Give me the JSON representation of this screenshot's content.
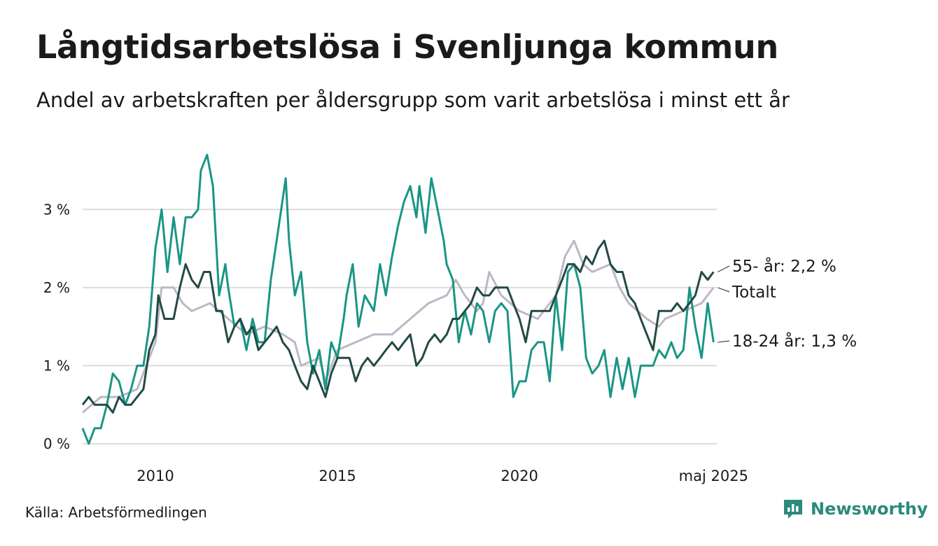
{
  "header": {
    "title": "Långtidsarbetslösa i Svenljunga kommun",
    "subtitle": "Andel av arbetskraften per åldersgrupp som varit arbetslösa i minst ett år"
  },
  "footer": {
    "source": "Källa: Arbetsförmedlingen",
    "brand": "Newsworthy",
    "brand_color": "#2a8a7c"
  },
  "chart_data": {
    "type": "line",
    "title": "Långtidsarbetslösa i Svenljunga kommun",
    "subtitle": "Andel av arbetskraften per åldersgrupp som varit arbetslösa i minst ett år",
    "x_unit": "year",
    "xlim": [
      2008.0,
      2025.42
    ],
    "ylim": [
      0,
      3.8
    ],
    "y_ticks": [
      {
        "value": 0,
        "label": "0 %"
      },
      {
        "value": 1,
        "label": "1 %"
      },
      {
        "value": 2,
        "label": "2 %"
      },
      {
        "value": 3,
        "label": "3 %"
      }
    ],
    "x_ticks": [
      {
        "value": 2010,
        "label": "2010"
      },
      {
        "value": 2015,
        "label": "2015"
      },
      {
        "value": 2020,
        "label": "2020"
      },
      {
        "value": 2025.33,
        "label": "maj 2025"
      }
    ],
    "grid": "horizontal",
    "series": [
      {
        "name": "Totalt",
        "color": "#bcb8c6",
        "end_label": "Totalt",
        "points": [
          [
            2008.0,
            0.4
          ],
          [
            2008.5,
            0.6
          ],
          [
            2009.0,
            0.6
          ],
          [
            2009.5,
            0.7
          ],
          [
            2010.0,
            1.3
          ],
          [
            2010.17,
            2.0
          ],
          [
            2010.5,
            2.0
          ],
          [
            2010.75,
            1.8
          ],
          [
            2011.0,
            1.7
          ],
          [
            2011.5,
            1.8
          ],
          [
            2011.75,
            1.7
          ],
          [
            2012.0,
            1.6
          ],
          [
            2012.5,
            1.4
          ],
          [
            2013.0,
            1.5
          ],
          [
            2013.5,
            1.4
          ],
          [
            2013.83,
            1.3
          ],
          [
            2014.0,
            1.0
          ],
          [
            2014.5,
            1.1
          ],
          [
            2014.67,
            0.8
          ],
          [
            2015.0,
            1.2
          ],
          [
            2015.5,
            1.3
          ],
          [
            2016.0,
            1.4
          ],
          [
            2016.5,
            1.4
          ],
          [
            2017.0,
            1.6
          ],
          [
            2017.5,
            1.8
          ],
          [
            2018.0,
            1.9
          ],
          [
            2018.25,
            2.1
          ],
          [
            2018.5,
            1.9
          ],
          [
            2018.83,
            1.7
          ],
          [
            2019.0,
            1.8
          ],
          [
            2019.17,
            2.2
          ],
          [
            2019.5,
            1.9
          ],
          [
            2020.0,
            1.7
          ],
          [
            2020.5,
            1.6
          ],
          [
            2021.0,
            1.9
          ],
          [
            2021.25,
            2.4
          ],
          [
            2021.5,
            2.6
          ],
          [
            2021.75,
            2.3
          ],
          [
            2022.0,
            2.2
          ],
          [
            2022.5,
            2.3
          ],
          [
            2022.75,
            2.0
          ],
          [
            2023.0,
            1.8
          ],
          [
            2023.5,
            1.6
          ],
          [
            2023.83,
            1.5
          ],
          [
            2024.0,
            1.6
          ],
          [
            2024.5,
            1.7
          ],
          [
            2025.0,
            1.8
          ],
          [
            2025.33,
            2.0
          ]
        ]
      },
      {
        "name": "18-24 år",
        "color": "#1a9585",
        "end_label": "18-24 år: 1,3 %",
        "points": [
          [
            2008.0,
            0.2
          ],
          [
            2008.17,
            0.0
          ],
          [
            2008.33,
            0.2
          ],
          [
            2008.5,
            0.2
          ],
          [
            2008.67,
            0.5
          ],
          [
            2008.83,
            0.9
          ],
          [
            2009.0,
            0.8
          ],
          [
            2009.17,
            0.5
          ],
          [
            2009.33,
            0.7
          ],
          [
            2009.5,
            1.0
          ],
          [
            2009.67,
            1.0
          ],
          [
            2009.83,
            1.5
          ],
          [
            2010.0,
            2.5
          ],
          [
            2010.17,
            3.0
          ],
          [
            2010.33,
            2.2
          ],
          [
            2010.5,
            2.9
          ],
          [
            2010.67,
            2.3
          ],
          [
            2010.83,
            2.9
          ],
          [
            2011.0,
            2.9
          ],
          [
            2011.17,
            3.0
          ],
          [
            2011.25,
            3.5
          ],
          [
            2011.42,
            3.7
          ],
          [
            2011.58,
            3.3
          ],
          [
            2011.75,
            1.9
          ],
          [
            2011.92,
            2.3
          ],
          [
            2012.0,
            2.0
          ],
          [
            2012.17,
            1.5
          ],
          [
            2012.33,
            1.6
          ],
          [
            2012.5,
            1.2
          ],
          [
            2012.67,
            1.6
          ],
          [
            2012.83,
            1.3
          ],
          [
            2013.0,
            1.3
          ],
          [
            2013.17,
            2.1
          ],
          [
            2013.33,
            2.6
          ],
          [
            2013.58,
            3.4
          ],
          [
            2013.67,
            2.6
          ],
          [
            2013.83,
            1.9
          ],
          [
            2014.0,
            2.2
          ],
          [
            2014.17,
            1.3
          ],
          [
            2014.33,
            0.9
          ],
          [
            2014.5,
            1.2
          ],
          [
            2014.67,
            0.7
          ],
          [
            2014.83,
            1.3
          ],
          [
            2015.0,
            1.1
          ],
          [
            2015.17,
            1.6
          ],
          [
            2015.25,
            1.9
          ],
          [
            2015.42,
            2.3
          ],
          [
            2015.58,
            1.5
          ],
          [
            2015.75,
            1.9
          ],
          [
            2016.0,
            1.7
          ],
          [
            2016.17,
            2.3
          ],
          [
            2016.33,
            1.9
          ],
          [
            2016.5,
            2.4
          ],
          [
            2016.67,
            2.8
          ],
          [
            2016.83,
            3.1
          ],
          [
            2017.0,
            3.3
          ],
          [
            2017.17,
            2.9
          ],
          [
            2017.25,
            3.3
          ],
          [
            2017.42,
            2.7
          ],
          [
            2017.58,
            3.4
          ],
          [
            2017.75,
            3.0
          ],
          [
            2017.92,
            2.6
          ],
          [
            2018.0,
            2.3
          ],
          [
            2018.17,
            2.1
          ],
          [
            2018.33,
            1.3
          ],
          [
            2018.5,
            1.7
          ],
          [
            2018.67,
            1.4
          ],
          [
            2018.83,
            1.8
          ],
          [
            2019.0,
            1.7
          ],
          [
            2019.17,
            1.3
          ],
          [
            2019.33,
            1.7
          ],
          [
            2019.5,
            1.8
          ],
          [
            2019.67,
            1.7
          ],
          [
            2019.83,
            0.6
          ],
          [
            2020.0,
            0.8
          ],
          [
            2020.17,
            0.8
          ],
          [
            2020.33,
            1.2
          ],
          [
            2020.5,
            1.3
          ],
          [
            2020.67,
            1.3
          ],
          [
            2020.83,
            0.8
          ],
          [
            2021.0,
            1.9
          ],
          [
            2021.17,
            1.2
          ],
          [
            2021.33,
            2.2
          ],
          [
            2021.5,
            2.3
          ],
          [
            2021.67,
            2.0
          ],
          [
            2021.83,
            1.1
          ],
          [
            2022.0,
            0.9
          ],
          [
            2022.17,
            1.0
          ],
          [
            2022.33,
            1.2
          ],
          [
            2022.5,
            0.6
          ],
          [
            2022.67,
            1.1
          ],
          [
            2022.83,
            0.7
          ],
          [
            2023.0,
            1.1
          ],
          [
            2023.17,
            0.6
          ],
          [
            2023.33,
            1.0
          ],
          [
            2023.5,
            1.0
          ],
          [
            2023.67,
            1.0
          ],
          [
            2023.83,
            1.2
          ],
          [
            2024.0,
            1.1
          ],
          [
            2024.17,
            1.3
          ],
          [
            2024.33,
            1.1
          ],
          [
            2024.5,
            1.2
          ],
          [
            2024.67,
            2.0
          ],
          [
            2024.83,
            1.5
          ],
          [
            2025.0,
            1.1
          ],
          [
            2025.17,
            1.8
          ],
          [
            2025.33,
            1.3
          ]
        ]
      },
      {
        "name": "55- år",
        "color": "#234a44",
        "end_label": "55- år: 2,2 %",
        "points": [
          [
            2008.0,
            0.5
          ],
          [
            2008.17,
            0.6
          ],
          [
            2008.33,
            0.5
          ],
          [
            2008.5,
            0.5
          ],
          [
            2008.67,
            0.5
          ],
          [
            2008.83,
            0.4
          ],
          [
            2009.0,
            0.6
          ],
          [
            2009.17,
            0.5
          ],
          [
            2009.33,
            0.5
          ],
          [
            2009.5,
            0.6
          ],
          [
            2009.67,
            0.7
          ],
          [
            2009.83,
            1.2
          ],
          [
            2010.0,
            1.4
          ],
          [
            2010.08,
            1.9
          ],
          [
            2010.25,
            1.6
          ],
          [
            2010.5,
            1.6
          ],
          [
            2010.67,
            2.0
          ],
          [
            2010.83,
            2.3
          ],
          [
            2011.0,
            2.1
          ],
          [
            2011.17,
            2.0
          ],
          [
            2011.33,
            2.2
          ],
          [
            2011.5,
            2.2
          ],
          [
            2011.67,
            1.7
          ],
          [
            2011.83,
            1.7
          ],
          [
            2012.0,
            1.3
          ],
          [
            2012.17,
            1.5
          ],
          [
            2012.33,
            1.6
          ],
          [
            2012.5,
            1.4
          ],
          [
            2012.67,
            1.5
          ],
          [
            2012.83,
            1.2
          ],
          [
            2013.0,
            1.3
          ],
          [
            2013.17,
            1.4
          ],
          [
            2013.33,
            1.5
          ],
          [
            2013.5,
            1.3
          ],
          [
            2013.67,
            1.2
          ],
          [
            2013.83,
            1.0
          ],
          [
            2014.0,
            0.8
          ],
          [
            2014.17,
            0.7
          ],
          [
            2014.33,
            1.0
          ],
          [
            2014.5,
            0.8
          ],
          [
            2014.67,
            0.6
          ],
          [
            2014.83,
            0.9
          ],
          [
            2015.0,
            1.1
          ],
          [
            2015.17,
            1.1
          ],
          [
            2015.33,
            1.1
          ],
          [
            2015.5,
            0.8
          ],
          [
            2015.67,
            1.0
          ],
          [
            2015.83,
            1.1
          ],
          [
            2016.0,
            1.0
          ],
          [
            2016.17,
            1.1
          ],
          [
            2016.33,
            1.2
          ],
          [
            2016.5,
            1.3
          ],
          [
            2016.67,
            1.2
          ],
          [
            2016.83,
            1.3
          ],
          [
            2017.0,
            1.4
          ],
          [
            2017.17,
            1.0
          ],
          [
            2017.33,
            1.1
          ],
          [
            2017.5,
            1.3
          ],
          [
            2017.67,
            1.4
          ],
          [
            2017.83,
            1.3
          ],
          [
            2018.0,
            1.4
          ],
          [
            2018.17,
            1.6
          ],
          [
            2018.33,
            1.6
          ],
          [
            2018.5,
            1.7
          ],
          [
            2018.67,
            1.8
          ],
          [
            2018.83,
            2.0
          ],
          [
            2019.0,
            1.9
          ],
          [
            2019.17,
            1.9
          ],
          [
            2019.33,
            2.0
          ],
          [
            2019.5,
            2.0
          ],
          [
            2019.67,
            2.0
          ],
          [
            2019.83,
            1.8
          ],
          [
            2020.0,
            1.6
          ],
          [
            2020.17,
            1.3
          ],
          [
            2020.33,
            1.7
          ],
          [
            2020.5,
            1.7
          ],
          [
            2020.67,
            1.7
          ],
          [
            2020.83,
            1.7
          ],
          [
            2021.0,
            1.9
          ],
          [
            2021.17,
            2.1
          ],
          [
            2021.33,
            2.3
          ],
          [
            2021.5,
            2.3
          ],
          [
            2021.67,
            2.2
          ],
          [
            2021.83,
            2.4
          ],
          [
            2022.0,
            2.3
          ],
          [
            2022.17,
            2.5
          ],
          [
            2022.33,
            2.6
          ],
          [
            2022.5,
            2.3
          ],
          [
            2022.67,
            2.2
          ],
          [
            2022.83,
            2.2
          ],
          [
            2023.0,
            1.9
          ],
          [
            2023.17,
            1.8
          ],
          [
            2023.33,
            1.6
          ],
          [
            2023.5,
            1.4
          ],
          [
            2023.67,
            1.2
          ],
          [
            2023.83,
            1.7
          ],
          [
            2024.0,
            1.7
          ],
          [
            2024.17,
            1.7
          ],
          [
            2024.33,
            1.8
          ],
          [
            2024.5,
            1.7
          ],
          [
            2024.67,
            1.8
          ],
          [
            2024.83,
            1.9
          ],
          [
            2025.0,
            2.2
          ],
          [
            2025.17,
            2.1
          ],
          [
            2025.33,
            2.2
          ]
        ]
      }
    ]
  }
}
